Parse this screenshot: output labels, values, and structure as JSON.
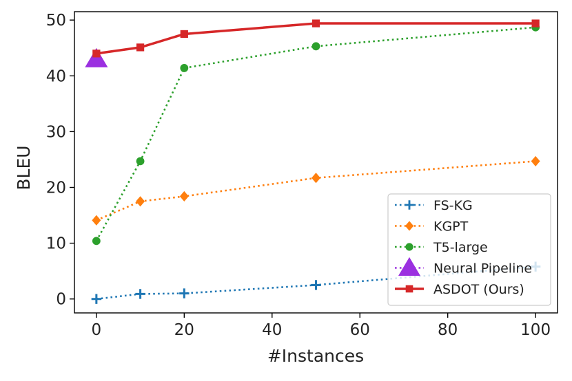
{
  "chart_data": {
    "type": "line",
    "title": "",
    "xlabel": "#Instances",
    "ylabel": "BLEU",
    "xlim": [
      -5,
      105
    ],
    "ylim": [
      -2.5,
      51.5
    ],
    "xticks": [
      0,
      20,
      40,
      60,
      80,
      100
    ],
    "yticks": [
      0,
      10,
      20,
      30,
      40,
      50
    ],
    "grid": false,
    "legend_position": "lower-right",
    "series": [
      {
        "name": "FS-KG",
        "color": "#1f77b4",
        "style": "dotted",
        "marker": "plus",
        "x": [
          0,
          10,
          20,
          50,
          100
        ],
        "y": [
          0.0,
          0.9,
          1.0,
          2.5,
          5.8
        ]
      },
      {
        "name": "KGPT",
        "color": "#ff7f0e",
        "style": "dotted",
        "marker": "diamond",
        "x": [
          0,
          10,
          20,
          50,
          100
        ],
        "y": [
          14.1,
          17.5,
          18.4,
          21.7,
          24.7
        ]
      },
      {
        "name": "T5-large",
        "color": "#2ca02c",
        "style": "dotted",
        "marker": "circle",
        "x": [
          0,
          10,
          20,
          50,
          100
        ],
        "y": [
          10.4,
          24.7,
          41.4,
          45.3,
          48.7
        ]
      },
      {
        "name": "Neural Pipeline",
        "color": "#9b30e0",
        "style": "dotted",
        "marker": "triangle",
        "x": [
          0
        ],
        "y": [
          43.0
        ]
      },
      {
        "name": "ASDOT (Ours)",
        "color": "#d62728",
        "style": "solid",
        "marker": "square",
        "x": [
          0,
          10,
          20,
          50,
          100
        ],
        "y": [
          44.0,
          45.1,
          47.5,
          49.4,
          49.4
        ]
      }
    ]
  }
}
